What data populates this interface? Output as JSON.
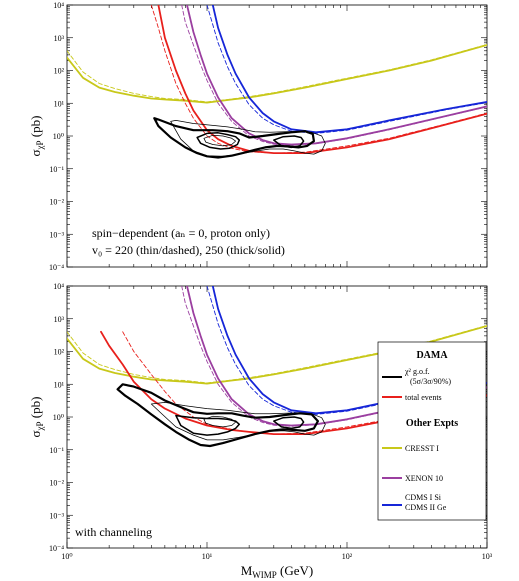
{
  "colors": {
    "dama": "#000000",
    "total_events": "#e8201c",
    "cresst": "#c8c81a",
    "xenon": "#9b3fa0",
    "cdms": "#1626d8"
  },
  "chart_data": [
    {
      "type": "line",
      "panel": "top",
      "xlabel": "",
      "ylabel_main": "σ",
      "ylabel_sub": "χP",
      "ylabel_unit": " (pb)",
      "xscale": "log",
      "yscale": "log",
      "xlim": [
        1,
        1000
      ],
      "ylim": [
        0.0001,
        10000
      ],
      "xticks": [
        "10⁰",
        "10¹",
        "10²",
        "10³"
      ],
      "yticks": [
        "10⁻⁴",
        "10⁻³",
        "10⁻²",
        "10⁻¹",
        "10⁰",
        "10¹",
        "10²",
        "10³",
        "10⁴"
      ],
      "annotation_lines": [
        "spin−dependent (aₙ = 0, proton only)",
        "v₀ = 220 (thin/dashed), 250 (thick/solid)"
      ],
      "series": [
        {
          "color_key": "cresst",
          "style": "solid",
          "x": [
            1,
            1.3,
            1.7,
            2.2,
            3,
            4,
            5,
            7,
            10,
            15,
            20,
            30,
            50,
            100,
            200,
            400,
            1000
          ],
          "y": [
            250,
            60,
            30,
            22,
            17,
            14,
            13,
            12,
            10.5,
            13,
            15,
            20,
            30,
            55,
            100,
            200,
            600
          ]
        },
        {
          "color_key": "cresst",
          "style": "dashed",
          "x": [
            1,
            1.3,
            1.7,
            2.2,
            3,
            4,
            5,
            7,
            10,
            15,
            20,
            30,
            50,
            100,
            200,
            400,
            1000
          ],
          "y": [
            400,
            90,
            40,
            28,
            20,
            16,
            14,
            13,
            11,
            13.5,
            16,
            21,
            32,
            58,
            105,
            210,
            620
          ]
        },
        {
          "color_key": "total_events",
          "style": "solid",
          "x": [
            4.5,
            5,
            6,
            7,
            8,
            10,
            12,
            15,
            20,
            30,
            50,
            100,
            200,
            500,
            1000
          ],
          "y": [
            10000,
            1000,
            100,
            20,
            6,
            1.5,
            0.8,
            0.5,
            0.35,
            0.3,
            0.3,
            0.45,
            0.8,
            2.2,
            4.8
          ]
        },
        {
          "color_key": "total_events",
          "style": "dashed",
          "x": [
            4,
            4.5,
            5,
            6,
            7,
            8,
            10,
            12,
            15,
            20,
            30,
            50,
            100,
            200,
            500,
            1000
          ],
          "y": [
            10000,
            2000,
            400,
            40,
            10,
            3.5,
            1.0,
            0.6,
            0.42,
            0.33,
            0.3,
            0.32,
            0.5,
            0.85,
            2.3,
            5
          ]
        },
        {
          "color_key": "xenon",
          "style": "solid",
          "x": [
            7.2,
            8,
            9,
            10,
            12,
            15,
            20,
            25,
            30,
            40,
            60,
            100,
            200,
            500,
            1000
          ],
          "y": [
            10000,
            1500,
            300,
            80,
            15,
            3.5,
            1.2,
            0.75,
            0.6,
            0.55,
            0.6,
            0.85,
            1.6,
            4,
            8
          ]
        },
        {
          "color_key": "xenon",
          "style": "dashed",
          "x": [
            6.6,
            7,
            8,
            9,
            10,
            12,
            15,
            20,
            25,
            30,
            40,
            60,
            100,
            200,
            500,
            1000
          ],
          "y": [
            10000,
            3000,
            600,
            150,
            50,
            10,
            2.8,
            1.0,
            0.68,
            0.56,
            0.52,
            0.58,
            0.82,
            1.55,
            3.9,
            7.8
          ]
        },
        {
          "color_key": "cdms",
          "style": "solid",
          "x": [
            11,
            12,
            14,
            16,
            20,
            25,
            30,
            40,
            60,
            100,
            200,
            500,
            1000
          ],
          "y": [
            10000,
            2000,
            300,
            80,
            15,
            5,
            2.8,
            1.6,
            1.3,
            1.6,
            3,
            6.5,
            11
          ]
        },
        {
          "color_key": "cdms",
          "style": "dashed",
          "x": [
            10,
            11,
            12,
            14,
            16,
            20,
            25,
            30,
            40,
            60,
            100,
            200,
            500,
            1000
          ],
          "y": [
            10000,
            2500,
            700,
            130,
            40,
            9,
            3.5,
            2.2,
            1.4,
            1.2,
            1.5,
            2.8,
            6.2,
            10.5
          ]
        }
      ],
      "contours": [
        {
          "weight": "thick",
          "x": [
            4.5,
            4.2,
            4.5,
            6,
            8,
            11,
            14,
            17,
            20,
            25,
            32,
            40,
            50,
            57,
            58,
            52,
            45,
            38,
            32,
            26,
            22,
            18,
            15,
            12,
            10,
            8.5,
            7,
            5.5,
            4.5
          ],
          "y": [
            2,
            3.5,
            3.2,
            2.0,
            1.5,
            1.5,
            1.4,
            1.2,
            0.9,
            1.0,
            1.15,
            1.3,
            1.4,
            1.15,
            0.7,
            0.5,
            0.45,
            0.48,
            0.5,
            0.45,
            0.38,
            0.3,
            0.25,
            0.22,
            0.24,
            0.3,
            0.45,
            0.9,
            2
          ]
        },
        {
          "weight": "medium",
          "x": [
            8.5,
            10,
            12,
            14,
            16,
            17,
            16.5,
            14.5,
            12.5,
            10.5,
            9,
            8.5
          ],
          "y": [
            0.9,
            1.2,
            1.25,
            1.1,
            0.95,
            0.75,
            0.55,
            0.42,
            0.4,
            0.45,
            0.6,
            0.9
          ]
        },
        {
          "weight": "medium",
          "x": [
            30,
            35,
            42,
            47,
            49,
            46,
            40,
            34,
            30
          ],
          "y": [
            0.75,
            0.95,
            1.0,
            0.9,
            0.7,
            0.5,
            0.45,
            0.5,
            0.75
          ]
        },
        {
          "weight": "thin",
          "x": [
            5.5,
            6,
            8,
            11,
            14,
            18,
            22,
            28,
            36,
            46,
            56,
            66,
            70,
            66,
            58,
            50,
            42,
            35,
            28,
            22,
            17,
            13,
            10,
            8,
            6.5,
            5.5
          ],
          "y": [
            2.8,
            3.0,
            2.4,
            2.1,
            1.9,
            1.6,
            1.35,
            1.3,
            1.35,
            1.4,
            1.3,
            1.0,
            0.6,
            0.35,
            0.28,
            0.3,
            0.35,
            0.4,
            0.4,
            0.34,
            0.28,
            0.24,
            0.25,
            0.35,
            0.8,
            2.8
          ]
        },
        {
          "weight": "thin",
          "x": [
            9.5,
            11,
            13,
            15,
            16,
            15,
            13,
            11,
            9.8,
            9.5
          ],
          "y": [
            0.85,
            1.05,
            1.0,
            0.85,
            0.7,
            0.55,
            0.5,
            0.55,
            0.65,
            0.85
          ]
        }
      ]
    },
    {
      "type": "line",
      "panel": "bottom",
      "xlabel_main": "M",
      "xlabel_sub": "WIMP",
      "xlabel_unit": " (GeV)",
      "ylabel_main": "σ",
      "ylabel_sub": "χP",
      "ylabel_unit": " (pb)",
      "xscale": "log",
      "yscale": "log",
      "xlim": [
        1,
        1000
      ],
      "ylim": [
        0.0001,
        10000
      ],
      "xticks": [
        "10⁰",
        "10¹",
        "10²",
        "10³"
      ],
      "yticks": [
        "10⁻⁴",
        "10⁻³",
        "10⁻²",
        "10⁻¹",
        "10⁰",
        "10¹",
        "10²",
        "10³",
        "10⁴"
      ],
      "annotation_lines": [
        "with channeling"
      ],
      "legend": {
        "position": "right",
        "title1": "DAMA",
        "gof_line1": "χ² g.o.f.",
        "gof_line2": "(5σ/3σ/90%)",
        "total": "total events",
        "title2": "Other Expts",
        "cresst": "CRESST I",
        "xenon": "XENON 10",
        "cdms1": "CDMS I Si",
        "cdms2": "CDMS II Ge"
      },
      "series": [
        {
          "color_key": "cresst",
          "style": "solid",
          "x": [
            1,
            1.3,
            1.7,
            2.2,
            3,
            4,
            5,
            7,
            10,
            15,
            20,
            30,
            50,
            100,
            200,
            400,
            1000
          ],
          "y": [
            250,
            60,
            30,
            22,
            17,
            14,
            13,
            12,
            10.5,
            13,
            15,
            20,
            30,
            55,
            100,
            200,
            600
          ]
        },
        {
          "color_key": "cresst",
          "style": "dashed",
          "x": [
            1,
            1.3,
            1.7,
            2.2,
            3,
            4,
            5,
            7,
            10,
            15,
            20,
            30,
            50,
            100,
            200,
            400,
            1000
          ],
          "y": [
            400,
            90,
            40,
            28,
            20,
            16,
            14,
            13,
            11,
            13.5,
            16,
            21,
            32,
            58,
            105,
            210,
            620
          ]
        },
        {
          "color_key": "total_events",
          "style": "solid",
          "x": [
            1.75,
            2,
            2.5,
            3,
            4,
            5,
            7,
            10,
            15,
            20,
            30,
            50,
            100,
            200,
            500,
            1000
          ],
          "y": [
            400,
            150,
            40,
            12,
            3.5,
            1.8,
            0.9,
            0.55,
            0.4,
            0.35,
            0.3,
            0.3,
            0.45,
            0.8,
            2.2,
            4.5
          ]
        },
        {
          "color_key": "total_events",
          "style": "dashed",
          "x": [
            2.5,
            3,
            4,
            5,
            6,
            8,
            10,
            15,
            20,
            30,
            50,
            100,
            200,
            500,
            1000
          ],
          "y": [
            400,
            100,
            20,
            6,
            2.5,
            1.0,
            0.6,
            0.42,
            0.35,
            0.3,
            0.32,
            0.5,
            0.85,
            2.3,
            4.8
          ]
        },
        {
          "color_key": "xenon",
          "style": "solid",
          "x": [
            7.2,
            8,
            9,
            10,
            12,
            15,
            20,
            25,
            30,
            40,
            60,
            100,
            200,
            500,
            1000
          ],
          "y": [
            10000,
            1500,
            300,
            80,
            15,
            3.5,
            1.2,
            0.75,
            0.6,
            0.55,
            0.6,
            0.85,
            1.6,
            4,
            8
          ]
        },
        {
          "color_key": "xenon",
          "style": "dashed",
          "x": [
            6.6,
            7,
            8,
            9,
            10,
            12,
            15,
            20,
            25,
            30,
            40,
            60,
            100,
            200,
            500,
            1000
          ],
          "y": [
            10000,
            3000,
            600,
            150,
            50,
            10,
            2.8,
            1.0,
            0.68,
            0.56,
            0.52,
            0.58,
            0.82,
            1.55,
            3.9,
            7.8
          ]
        },
        {
          "color_key": "cdms",
          "style": "solid",
          "x": [
            11,
            12,
            14,
            16,
            20,
            25,
            30,
            40,
            60,
            100,
            200,
            500,
            1000
          ],
          "y": [
            10000,
            2000,
            300,
            80,
            15,
            5,
            2.8,
            1.6,
            1.3,
            1.6,
            3,
            6.5,
            11
          ]
        },
        {
          "color_key": "cdms",
          "style": "dashed",
          "x": [
            10,
            11,
            12,
            14,
            16,
            20,
            25,
            30,
            40,
            60,
            100,
            200,
            500,
            1000
          ],
          "y": [
            10000,
            2500,
            700,
            130,
            40,
            9,
            3.5,
            2.2,
            1.4,
            1.2,
            1.5,
            2.8,
            6.2,
            10.5
          ]
        }
      ],
      "contours": [
        {
          "weight": "thick",
          "x": [
            2.3,
            2.5,
            3,
            4,
            5,
            6.5,
            8,
            10,
            12,
            15,
            18,
            22,
            28,
            36,
            46,
            56,
            62,
            58,
            50,
            42,
            35,
            28,
            22,
            17,
            13,
            10.5,
            9,
            7.5,
            6,
            5,
            4,
            3.2,
            2.6,
            2.3
          ],
          "y": [
            7,
            10,
            8.5,
            5.5,
            3.2,
            2.0,
            1.4,
            1.25,
            1.3,
            1.3,
            1.1,
            0.95,
            1.0,
            1.15,
            1.3,
            1.2,
            0.75,
            0.45,
            0.38,
            0.4,
            0.42,
            0.38,
            0.3,
            0.22,
            0.16,
            0.13,
            0.14,
            0.2,
            0.35,
            0.6,
            1.2,
            2.5,
            4.5,
            7
          ]
        },
        {
          "weight": "medium",
          "x": [
            6,
            8,
            10,
            12,
            14,
            16,
            17,
            16,
            14,
            12,
            10,
            8,
            6.5,
            6
          ],
          "y": [
            1.1,
            0.95,
            0.9,
            0.9,
            0.85,
            0.75,
            0.6,
            0.45,
            0.35,
            0.3,
            0.28,
            0.32,
            0.55,
            1.1
          ]
        },
        {
          "weight": "medium",
          "x": [
            30,
            35,
            42,
            47,
            49,
            46,
            40,
            34,
            30
          ],
          "y": [
            0.75,
            0.95,
            1.0,
            0.9,
            0.7,
            0.5,
            0.45,
            0.5,
            0.75
          ]
        },
        {
          "weight": "thin",
          "x": [
            4,
            5,
            7,
            10,
            14,
            18,
            22,
            28,
            36,
            46,
            56,
            66,
            70,
            66,
            58,
            50,
            42,
            35,
            28,
            22,
            17,
            13,
            10,
            8,
            6,
            4.8,
            4
          ],
          "y": [
            2.5,
            2.8,
            2.2,
            1.8,
            1.6,
            1.4,
            1.25,
            1.25,
            1.3,
            1.35,
            1.25,
            0.95,
            0.6,
            0.35,
            0.28,
            0.3,
            0.35,
            0.38,
            0.36,
            0.3,
            0.24,
            0.2,
            0.2,
            0.28,
            0.5,
            1.2,
            2.5
          ]
        },
        {
          "weight": "thin",
          "x": [
            9.5,
            11,
            13,
            15,
            16,
            15,
            13,
            11,
            9.8,
            9.5
          ],
          "y": [
            0.85,
            1.05,
            1.0,
            0.85,
            0.7,
            0.55,
            0.5,
            0.55,
            0.65,
            0.85
          ]
        }
      ]
    }
  ]
}
